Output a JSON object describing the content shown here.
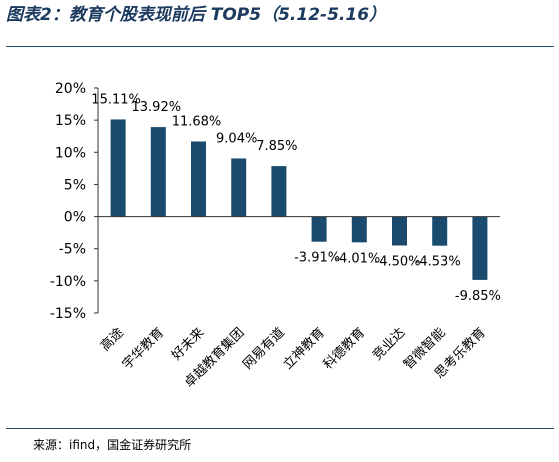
{
  "header": {
    "title": "图表2：教育个股表现前后 TOP5（5.12-5.16）"
  },
  "footer": {
    "source": "来源：ifind，国金证券研究所"
  },
  "colors": {
    "bar": "#1a4a6e",
    "rule": "#1f4e79",
    "axis": "#333333"
  },
  "chart_data": {
    "type": "bar",
    "categories": [
      "高途",
      "宇华教育",
      "好未来",
      "卓越教育集团",
      "网易有道",
      "立神教育",
      "科德教育",
      "竞业达",
      "智微智能",
      "思考乐教育"
    ],
    "values": [
      15.11,
      13.92,
      11.68,
      9.04,
      7.85,
      -3.91,
      -4.01,
      -4.5,
      -4.53,
      -9.85
    ],
    "data_labels": [
      "15.11%",
      "13.92%",
      "11.68%",
      "9.04%",
      "7.85%",
      "-3.91%",
      "-4.01%",
      "-4.50%",
      "-4.53%",
      "-9.85%"
    ],
    "yticks": [
      20,
      15,
      10,
      5,
      0,
      -5,
      -10,
      -15
    ],
    "ytick_labels": [
      "20%",
      "15%",
      "10%",
      "5%",
      "0%",
      "-5%",
      "-10%",
      "-15%"
    ],
    "ylim": [
      -15,
      20
    ],
    "grid": false,
    "legend": "none"
  }
}
